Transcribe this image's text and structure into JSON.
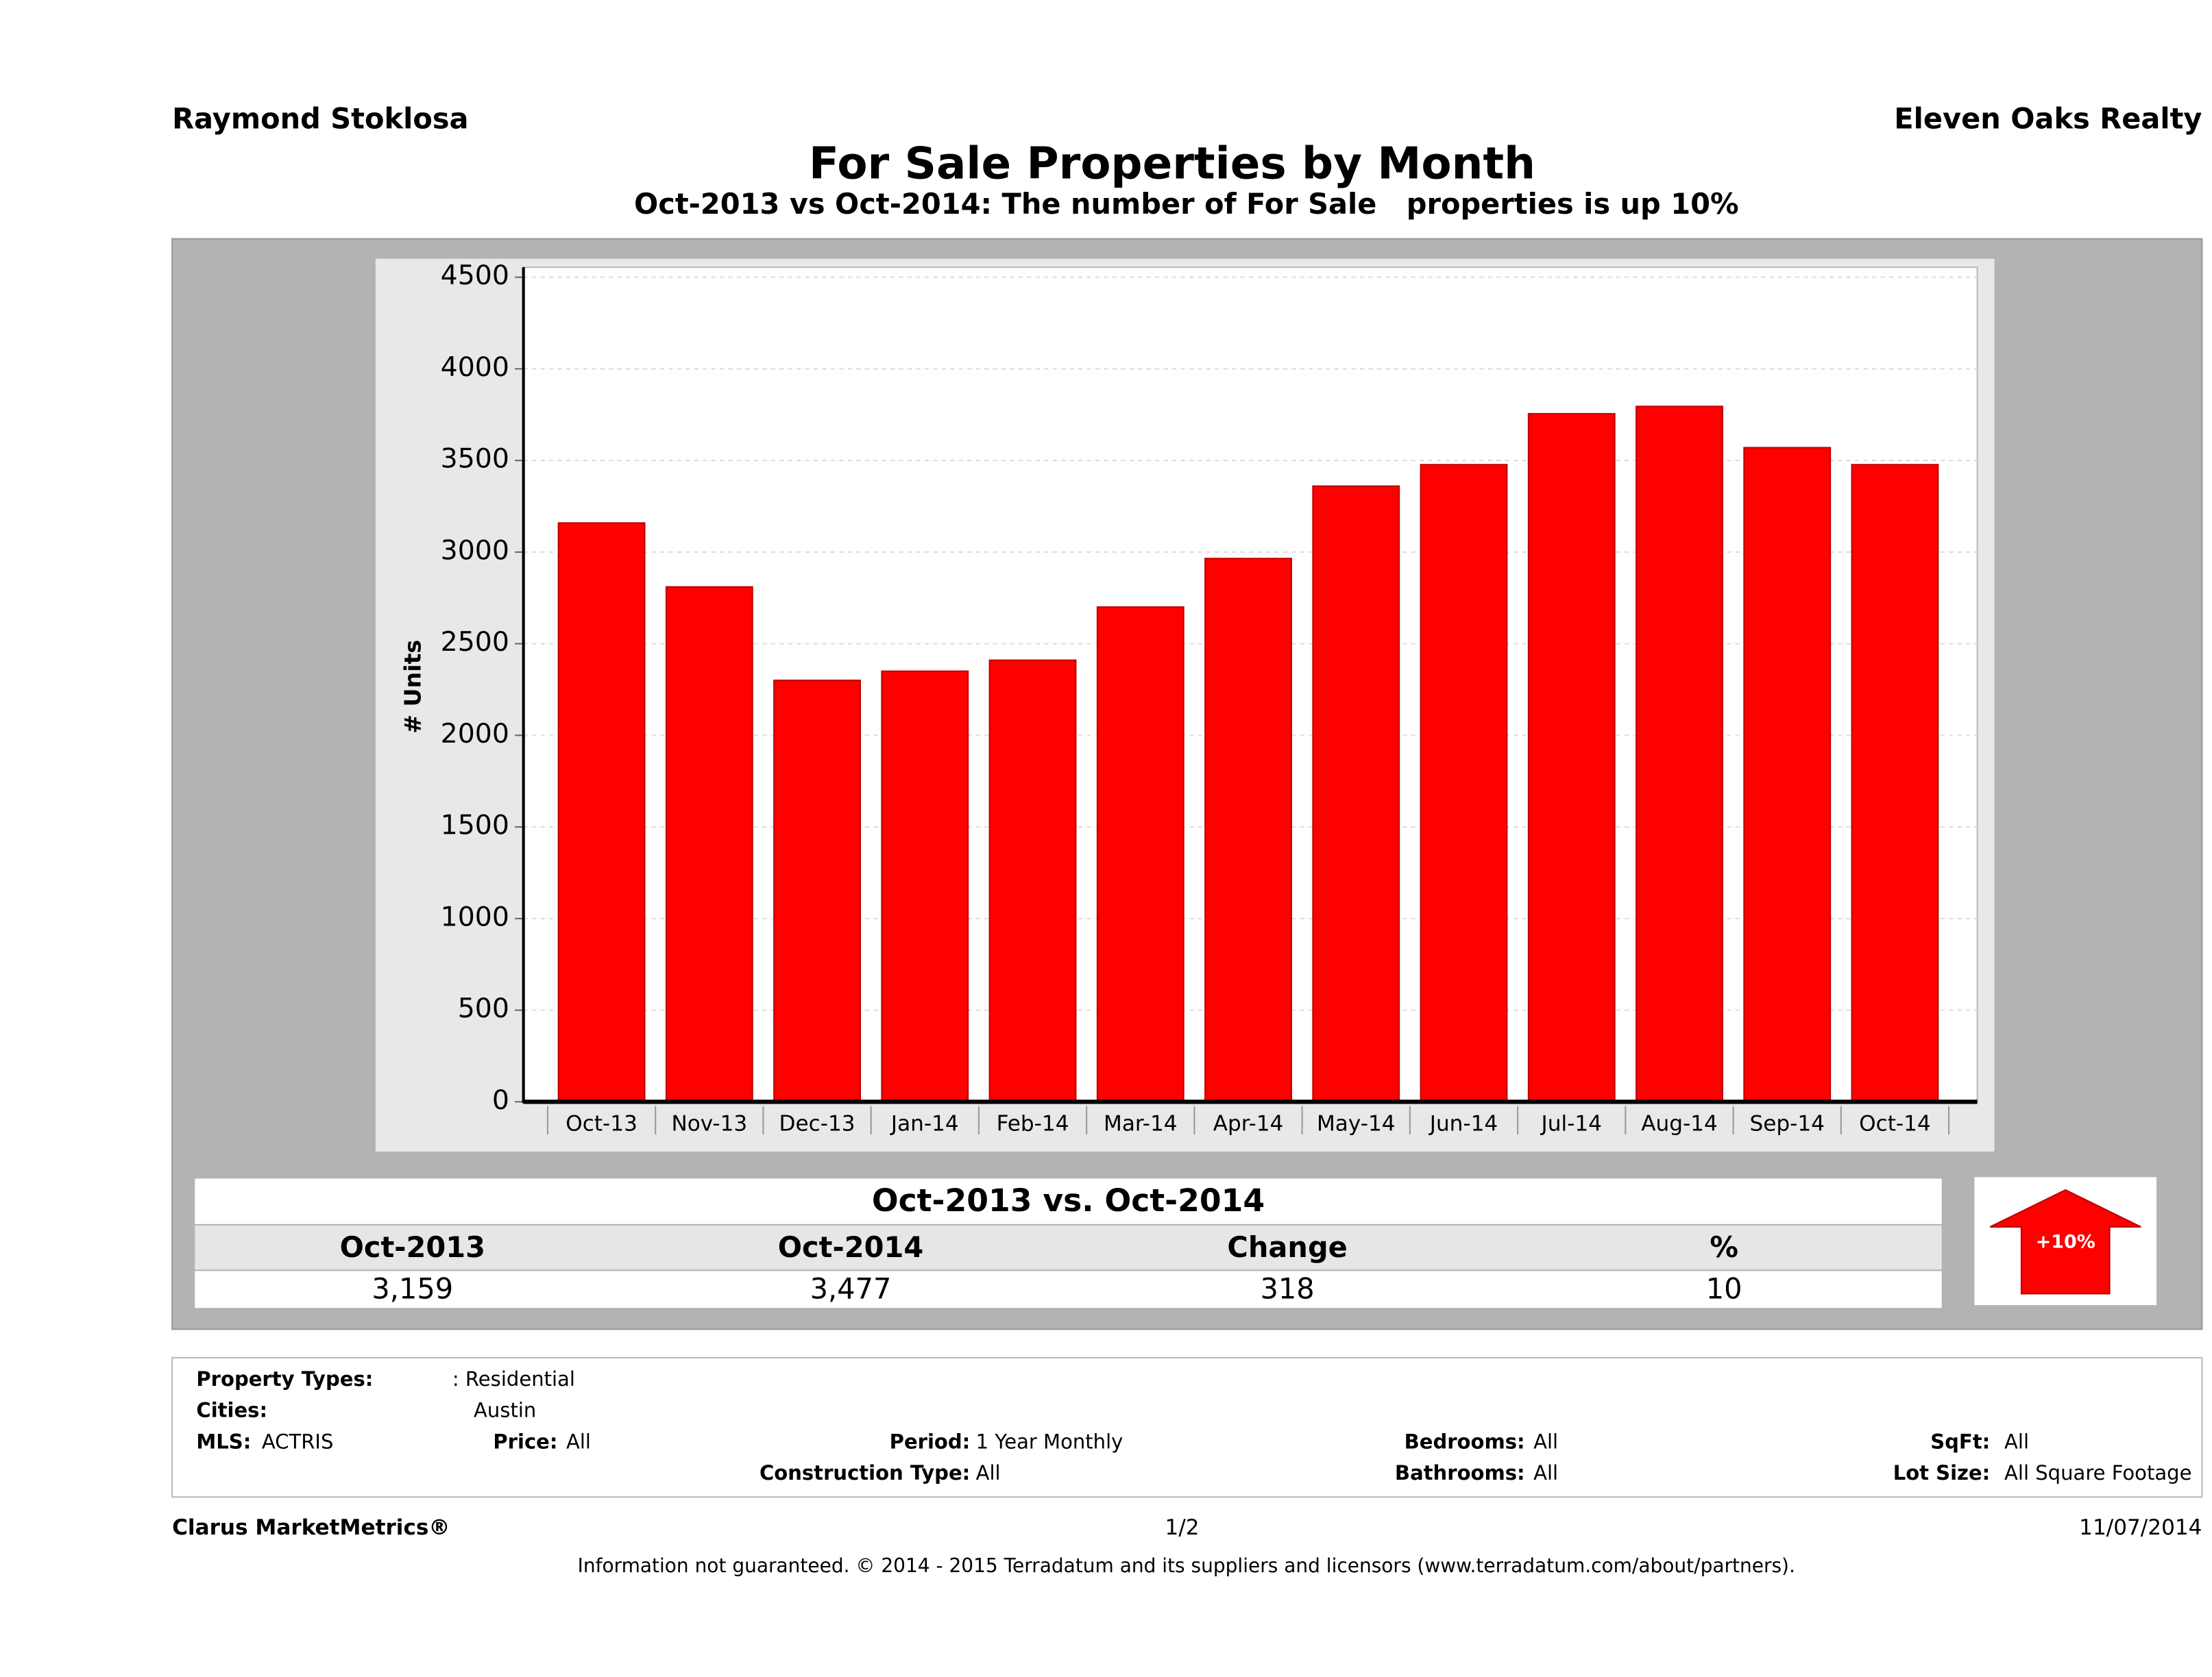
{
  "header": {
    "left": "Raymond Stoklosa",
    "right": "Eleven Oaks Realty"
  },
  "chart_data": {
    "type": "bar",
    "title": "For Sale Properties by Month",
    "subtitle": "Oct-2013 vs Oct-2014: The number of For Sale   properties is up 10%",
    "y_label": "# Units",
    "categories": [
      "Oct-13",
      "Nov-13",
      "Dec-13",
      "Jan-14",
      "Feb-14",
      "Mar-14",
      "Apr-14",
      "May-14",
      "Jun-14",
      "Jul-14",
      "Aug-14",
      "Sep-14",
      "Oct-14"
    ],
    "values": [
      3159,
      2810,
      2300,
      2350,
      2410,
      2700,
      2965,
      3360,
      3477,
      3755,
      3795,
      3570,
      3477
    ],
    "color": "#ff0000",
    "ylim": [
      0,
      4500
    ],
    "yticks": [
      0,
      500,
      1000,
      1500,
      2000,
      2500,
      3000,
      3500,
      4000,
      4500
    ],
    "grid": true
  },
  "table": {
    "title": "Oct-2013 vs. Oct-2014",
    "headers": [
      "Oct-2013",
      "Oct-2014",
      "Change",
      "%"
    ],
    "row": [
      "3,159",
      "3,477",
      "318",
      "10"
    ],
    "badge": "+10%"
  },
  "filters": [
    {
      "label": "Property Types:",
      "value": ": Residential"
    },
    {
      "label": "Cities:",
      "value": "Austin"
    },
    {
      "label": "MLS:",
      "value": "ACTRIS"
    },
    {
      "label": "Price:",
      "value": "All"
    },
    {
      "label": "Period:",
      "value": "1 Year Monthly"
    },
    {
      "label": "Bedrooms:",
      "value": "All"
    },
    {
      "label": "SqFt:",
      "value": "All"
    },
    {
      "label": "Construction Type:",
      "value": "All"
    },
    {
      "label": "Bathrooms:",
      "value": "All"
    },
    {
      "label": "Lot Size:",
      "value": "All Square Footage"
    }
  ],
  "footer": {
    "brand": "Clarus MarketMetrics®",
    "page": "1/2",
    "date": "11/07/2014",
    "disclaimer": "Information not guaranteed. © 2014 - 2015 Terradatum and its suppliers and licensors (www.terradatum.com/about/partners)."
  }
}
